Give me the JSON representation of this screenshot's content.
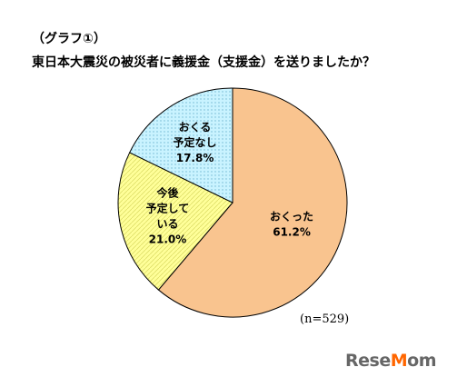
{
  "header": {
    "graph_label": "（グラフ①）",
    "title": "東日本大震災の被災者に義援金（支援金）を送りましたか？"
  },
  "note": "(n=529)",
  "logo": {
    "pre": "Rese",
    "accent": "M",
    "post": "om"
  },
  "chart_data": {
    "type": "pie",
    "title": "東日本大震災の被災者に義援金（支援金）を送りましたか？",
    "unit": "%",
    "slices": [
      {
        "label": [
          "おくった"
        ],
        "value": 61.2,
        "value_label": "61.2%",
        "color": "#f9c48f",
        "pattern": "none"
      },
      {
        "label": [
          "今後",
          "予定して",
          "いる"
        ],
        "value": 21.0,
        "value_label": "21.0%",
        "color": "#ffff99",
        "pattern": "hatch"
      },
      {
        "label": [
          "おくる",
          "予定なし"
        ],
        "value": 17.8,
        "value_label": "17.8%",
        "color": "#c9f3ff",
        "pattern": "dots"
      }
    ],
    "start_angle_deg": 0,
    "direction": "clockwise"
  }
}
